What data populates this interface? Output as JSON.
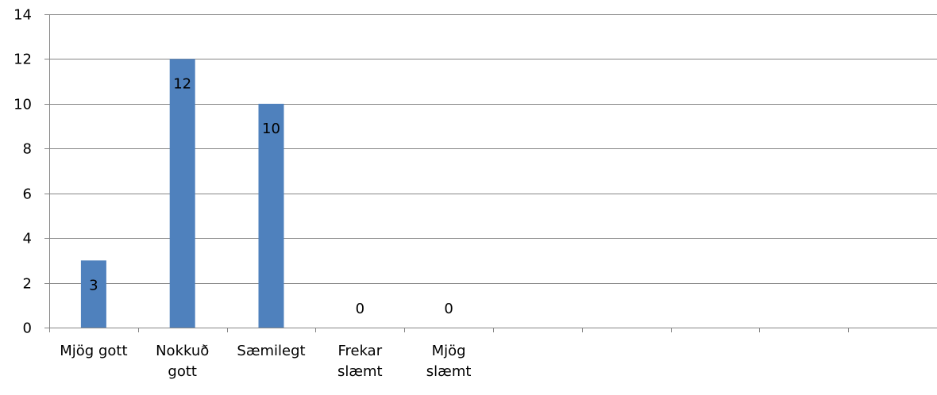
{
  "chart_data": {
    "type": "bar",
    "categories": [
      [
        "Mjög gott"
      ],
      [
        "Nokkuð",
        "gott"
      ],
      [
        "Sæmilegt"
      ],
      [
        "Frekar",
        "slæmt"
      ],
      [
        "Mjög",
        "slæmt"
      ],
      [],
      [],
      [],
      [],
      []
    ],
    "values": [
      3,
      12,
      10,
      0,
      0,
      null,
      null,
      null,
      null,
      null
    ],
    "ylim": [
      0,
      14
    ],
    "yticks": [
      0,
      2,
      4,
      6,
      8,
      10,
      12,
      14
    ],
    "grid": true,
    "title": "",
    "xlabel": "",
    "ylabel": "",
    "colors": {
      "bar": "#4f81bd",
      "grid": "#868686",
      "axis": "#868686"
    }
  }
}
